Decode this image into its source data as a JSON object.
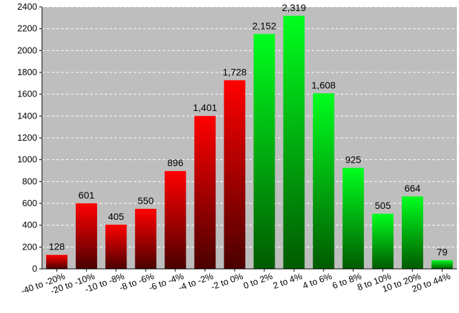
{
  "chart_data": {
    "type": "bar",
    "title": "",
    "xlabel": "",
    "ylabel": "",
    "categories": [
      "-40 to -20%",
      "-20 to -10%",
      "-10 to -8%",
      "-8 to -6%",
      "-6 to -4%",
      "-4 to -2%",
      "-2 to 0%",
      "0 to 2%",
      "2 to 4%",
      "4 to 6%",
      "6 to 8%",
      "8 to 10%",
      "10 to 20%",
      "20 to 44%"
    ],
    "values": [
      128,
      601,
      405,
      550,
      896,
      1401,
      1728,
      2152,
      2319,
      1608,
      925,
      505,
      664,
      79
    ],
    "value_labels": [
      "128",
      "601",
      "405",
      "550",
      "896",
      "1,401",
      "1,728",
      "2,152",
      "2,319",
      "1,608",
      "925",
      "505",
      "664",
      "79"
    ],
    "ylim": [
      0,
      2400
    ],
    "yticks": [
      0,
      200,
      400,
      600,
      800,
      1000,
      1200,
      1400,
      1600,
      1800,
      2000,
      2200,
      2400
    ],
    "grid": true,
    "legend": "none",
    "colors": {
      "negative_top": "#ff0000",
      "negative_bottom": "#4a0000",
      "positive_top": "#00ff1e",
      "positive_bottom": "#005a00",
      "grid": "#ffffff",
      "plot_bg": "#bebebe"
    }
  }
}
